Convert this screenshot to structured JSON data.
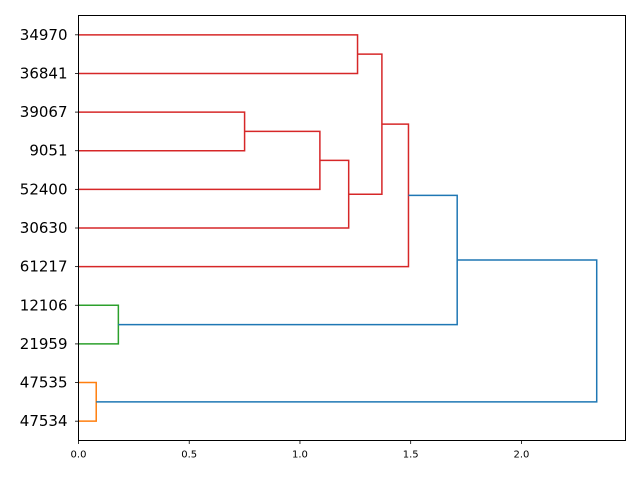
{
  "chart_data": {
    "type": "dendrogram",
    "orientation": "right",
    "title": "",
    "xlabel": "",
    "ylabel": "",
    "xlim": [
      0,
      2.47
    ],
    "grid": false,
    "xticks": [
      {
        "value": 0.0,
        "label": "0.0"
      },
      {
        "value": 0.5,
        "label": "0.5"
      },
      {
        "value": 1.0,
        "label": "1.0"
      },
      {
        "value": 1.5,
        "label": "1.5"
      },
      {
        "value": 2.0,
        "label": "2.0"
      }
    ],
    "leaves": [
      "34970",
      "36841",
      "39067",
      "9051",
      "52400",
      "30630",
      "61217",
      "12106",
      "21959",
      "47535",
      "47534"
    ],
    "merges": [
      {
        "children": [
          "leaf:9",
          "leaf:10"
        ],
        "distance": 0.08,
        "color": "#ff7f0e"
      },
      {
        "children": [
          "leaf:7",
          "leaf:8"
        ],
        "distance": 0.18,
        "color": "#2ca02c"
      },
      {
        "children": [
          "leaf:2",
          "leaf:3"
        ],
        "distance": 0.75,
        "color": "#d62728"
      },
      {
        "children": [
          "node:2",
          "leaf:4"
        ],
        "distance": 1.09,
        "color": "#d62728"
      },
      {
        "children": [
          "node:3",
          "leaf:5"
        ],
        "distance": 1.22,
        "color": "#d62728"
      },
      {
        "children": [
          "leaf:0",
          "leaf:1"
        ],
        "distance": 1.26,
        "color": "#d62728"
      },
      {
        "children": [
          "node:5",
          "node:4"
        ],
        "distance": 1.37,
        "color": "#d62728"
      },
      {
        "children": [
          "node:6",
          "leaf:6"
        ],
        "distance": 1.49,
        "color": "#d62728"
      },
      {
        "children": [
          "node:7",
          "node:1"
        ],
        "distance": 1.71,
        "color": "#1f77b4"
      },
      {
        "children": [
          "node:8",
          "node:0"
        ],
        "distance": 2.34,
        "color": "#1f77b4"
      }
    ]
  }
}
